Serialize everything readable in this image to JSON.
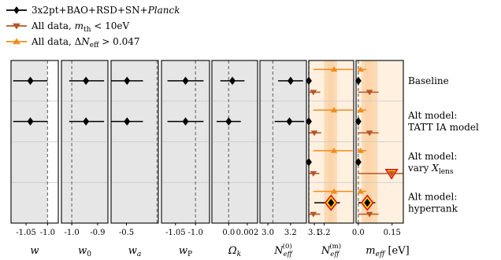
{
  "legend": [
    {
      "label": "3x2pt+BAO+RSD+SN+",
      "label_italic": "Planck",
      "color": "#000000",
      "marker": "diamond"
    },
    {
      "label": "All data, ",
      "label_math": "m",
      "label_sub": "th",
      "label_tail": " < 10eV",
      "color": "#b5562a",
      "marker": "triangle-down"
    },
    {
      "label": "All data, Δ",
      "label_math": "N",
      "label_sub": "eff",
      "label_tail": " > 0.047",
      "color": "#f28c1c",
      "marker": "triangle-up"
    }
  ],
  "row_labels": [
    [
      "Baseline"
    ],
    [
      "Alt model:",
      "TATT IA model"
    ],
    [
      "Alt model:",
      "vary X_lens"
    ],
    [
      "Alt model:",
      "hyperrank"
    ]
  ],
  "chart_data": {
    "type": "scatter",
    "subtype": "whisker-plot",
    "panels": [
      {
        "xlabel": "w",
        "xlabel_sub": "",
        "xlabel_sup": "",
        "xlim": [
          -1.085,
          -0.975
        ],
        "ticks": [
          {
            "v": -1.05,
            "label": "-1.05"
          },
          {
            "v": -1.0,
            "label": "-1.0"
          }
        ],
        "band": [
          -1.085,
          -1.0
        ],
        "band_color": "#e6e6e6",
        "ref_line": -1.0,
        "points": [
          {
            "row": 0,
            "series": "3x2pt+BAO+RSD+SN+Planck",
            "x": -1.04,
            "lo": -1.08,
            "hi": -1.0
          },
          {
            "row": 1,
            "series": "3x2pt+BAO+RSD+SN+Planck",
            "x": -1.04,
            "lo": -1.08,
            "hi": -1.0
          }
        ]
      },
      {
        "xlabel": "w",
        "xlabel_sub": "0",
        "xlabel_sup": "",
        "xlim": [
          -1.04,
          -0.86
        ],
        "ticks": [
          {
            "v": -1.0,
            "label": "-1.0"
          },
          {
            "v": -0.9,
            "label": "-0.9"
          }
        ],
        "band": [
          -1.04,
          -0.86
        ],
        "band_color": "#e6e6e6",
        "ref_line": -1.0,
        "points": [
          {
            "row": 0,
            "series": "3x2pt+BAO+RSD+SN+Planck",
            "x": -0.945,
            "lo": -1.01,
            "hi": -0.875
          },
          {
            "row": 1,
            "series": "3x2pt+BAO+RSD+SN+Planck",
            "x": -0.945,
            "lo": -1.01,
            "hi": -0.875
          }
        ]
      },
      {
        "xlabel": "w",
        "xlabel_sub": "a",
        "xlabel_sup": "",
        "xlim": [
          -0.75,
          0.02
        ],
        "ticks": [
          {
            "v": -0.5,
            "label": "-0.5"
          }
        ],
        "band": [
          -0.75,
          0.02
        ],
        "band_color": "#e6e6e6",
        "ref_line": 0.0,
        "points": [
          {
            "row": 0,
            "series": "3x2pt+BAO+RSD+SN+Planck",
            "x": -0.49,
            "lo": -0.75,
            "hi": -0.23
          },
          {
            "row": 1,
            "series": "3x2pt+BAO+RSD+SN+Planck",
            "x": -0.49,
            "lo": -0.75,
            "hi": -0.23
          }
        ]
      },
      {
        "xlabel": "w",
        "xlabel_sub": "P",
        "xlabel_sup": "",
        "xlim": [
          -1.085,
          -0.965
        ],
        "ticks": [
          {
            "v": -1.05,
            "label": "-1.05"
          },
          {
            "v": -1.0,
            "label": "-1.0"
          }
        ],
        "band": [
          -1.085,
          -0.965
        ],
        "band_color": "#e6e6e6",
        "ref_line": -1.0,
        "points": [
          {
            "row": 0,
            "series": "3x2pt+BAO+RSD+SN+Planck",
            "x": -1.025,
            "lo": -1.07,
            "hi": -0.98
          },
          {
            "row": 1,
            "series": "3x2pt+BAO+RSD+SN+Planck",
            "x": -1.025,
            "lo": -1.07,
            "hi": -0.98
          }
        ]
      },
      {
        "xlabel": "Ω",
        "xlabel_sub": "k",
        "xlabel_sup": "",
        "xlim": [
          -0.0018,
          0.0031
        ],
        "ticks": [
          {
            "v": 0.0,
            "label": "0.0"
          },
          {
            "v": 0.002,
            "label": "0.002"
          }
        ],
        "band": [
          -0.0018,
          0.0031
        ],
        "band_color": "#e6e6e6",
        "ref_line": 0.0,
        "points": [
          {
            "row": 0,
            "series": "3x2pt+BAO+RSD+SN+Planck",
            "x": 0.0004,
            "lo": -0.0009,
            "hi": 0.0017
          },
          {
            "row": 1,
            "series": "3x2pt+BAO+RSD+SN+Planck",
            "x": 0.0,
            "lo": -0.0013,
            "hi": 0.0013
          }
        ]
      },
      {
        "xlabel": "N",
        "xlabel_sub": "eff",
        "xlabel_sup": "(0)",
        "xlim": [
          2.93,
          3.34
        ],
        "ticks": [
          {
            "v": 3.0,
            "label": "3.0"
          },
          {
            "v": 3.2,
            "label": "3.2"
          }
        ],
        "band": [
          2.93,
          3.34
        ],
        "band_color": "#e6e6e6",
        "ref_line": 3.044,
        "points": [
          {
            "row": 0,
            "series": "3x2pt+BAO+RSD+SN+Planck",
            "x": 3.2,
            "lo": 3.09,
            "hi": 3.31
          },
          {
            "row": 1,
            "series": "3x2pt+BAO+RSD+SN+Planck",
            "x": 3.19,
            "lo": 3.06,
            "hi": 3.32
          }
        ]
      },
      {
        "xlabel": "N",
        "xlabel_sub": "eff",
        "xlabel_sup": "(m)",
        "xlim": [
          3.044,
          3.5
        ],
        "ticks": [
          {
            "v": 3.1,
            "label": "3.1"
          },
          {
            "v": 3.2,
            "label": "3.2"
          }
        ],
        "band": [
          3.044,
          3.5
        ],
        "band_color": "#fff0e0",
        "ref_line": 3.044,
        "overlay_bands": [
          [
            3.2,
            3.33
          ],
          [
            3.24,
            3.29
          ]
        ],
        "overlay_color": "#fbd3a5",
        "points": [
          {
            "row": 0,
            "series": "3x2pt+BAO+RSD+SN+Planck",
            "x": 3.044
          },
          {
            "row": 0.28,
            "series": "All data, m_th < 10eV",
            "x": 3.09,
            "lo": 3.045,
            "hi": 3.16
          },
          {
            "row": -0.28,
            "series": "All data, ΔN_eff > 0.047",
            "x": 3.3,
            "lo": 3.09,
            "hi": 3.49
          },
          {
            "row": 1,
            "series": "3x2pt+BAO+RSD+SN+Planck",
            "x": 3.044
          },
          {
            "row": 1.28,
            "series": "All data, m_th < 10eV",
            "x": 3.1,
            "lo": 3.045,
            "hi": 3.17
          },
          {
            "row": 0.72,
            "series": "All data, ΔN_eff > 0.047",
            "x": 3.3,
            "lo": 3.09,
            "hi": 3.49
          },
          {
            "row": 2,
            "series": "3x2pt+BAO+RSD+SN+Planck",
            "x": 3.044
          },
          {
            "row": 2.28,
            "series": "All data, m_th < 10eV",
            "x": 3.09,
            "lo": 3.045,
            "hi": 3.15
          },
          {
            "row": 1.72,
            "series": "All data, ΔN_eff > 0.047",
            "x": 3.3,
            "lo": 3.09,
            "hi": 3.49
          },
          {
            "row": 3,
            "series": "3x2pt+BAO+RSD+SN+Planck",
            "x": 3.27,
            "lo": 3.1,
            "hi": 3.36,
            "highlight": true
          },
          {
            "row": 3.28,
            "series": "All data, m_th < 10eV",
            "x": 3.09,
            "lo": 3.045,
            "hi": 3.16
          },
          {
            "row": 2.72,
            "series": "All data, ΔN_eff > 0.047",
            "x": 3.3,
            "lo": 3.09,
            "hi": 3.49
          }
        ]
      },
      {
        "xlabel": "m",
        "xlabel_sub": "eff",
        "xlabel_sup": "",
        "xlabel_tail": " [eV]",
        "xlim": [
          -0.01,
          0.2
        ],
        "ticks": [
          {
            "v": 0.0,
            "label": "0.0"
          },
          {
            "v": 0.15,
            "label": "0.15"
          }
        ],
        "band": [
          -0.01,
          0.2
        ],
        "band_color": "#fff0e0",
        "ref_line": 0.0,
        "overlay_bands": [
          [
            0.015,
            0.085
          ],
          [
            0.03,
            0.06
          ]
        ],
        "overlay_color": "#fbd3a5",
        "points": [
          {
            "row": 0,
            "series": "3x2pt+BAO+RSD+SN+Planck",
            "x": 0.0
          },
          {
            "row": 0.28,
            "series": "All data, m_th < 10eV",
            "x": 0.05,
            "lo": 0.0,
            "hi": 0.09
          },
          {
            "row": -0.28,
            "series": "All data, ΔN_eff > 0.047",
            "x": 0.01,
            "lo": 0.0,
            "hi": 0.035
          },
          {
            "row": 1,
            "series": "3x2pt+BAO+RSD+SN+Planck",
            "x": 0.0
          },
          {
            "row": 1.28,
            "series": "All data, m_th < 10eV",
            "x": 0.05,
            "lo": 0.0,
            "hi": 0.09
          },
          {
            "row": 0.72,
            "series": "All data, ΔN_eff > 0.047",
            "x": 0.01,
            "lo": 0.0,
            "hi": 0.035
          },
          {
            "row": 2,
            "series": "3x2pt+BAO+RSD+SN+Planck",
            "x": 0.0
          },
          {
            "row": 2.28,
            "series": "All data, m_th < 10eV",
            "x": 0.148,
            "lo": 0.0,
            "hi": 0.2,
            "highlight": true
          },
          {
            "row": 1.72,
            "series": "All data, ΔN_eff > 0.047",
            "x": 0.01,
            "lo": 0.0,
            "hi": 0.035
          },
          {
            "row": 3,
            "series": "3x2pt+BAO+RSD+SN+Planck",
            "x": 0.04,
            "lo": 0.0,
            "hi": 0.075,
            "highlight": true
          },
          {
            "row": 3.28,
            "series": "All data, m_th < 10eV",
            "x": 0.05,
            "lo": 0.0,
            "hi": 0.09
          },
          {
            "row": 2.72,
            "series": "All data, ΔN_eff > 0.047",
            "x": 0.01,
            "lo": 0.0,
            "hi": 0.035
          }
        ]
      }
    ],
    "series_styles": {
      "3x2pt+BAO+RSD+SN+Planck": {
        "color": "#000000",
        "marker": "diamond"
      },
      "All data, m_th < 10eV": {
        "color": "#b5562a",
        "marker": "triangle-down"
      },
      "All data, ΔN_eff > 0.047": {
        "color": "#f28c1c",
        "marker": "triangle-up"
      }
    },
    "highlight_colors": {
      "fill": "#f5d90a",
      "stroke": "#e3101a"
    },
    "rows": 4,
    "grid": "horizontal separators between rows"
  }
}
